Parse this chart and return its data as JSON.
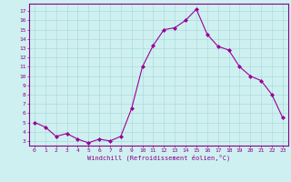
{
  "x": [
    0,
    1,
    2,
    3,
    4,
    5,
    6,
    7,
    8,
    9,
    10,
    11,
    12,
    13,
    14,
    15,
    16,
    17,
    18,
    19,
    20,
    21,
    22,
    23
  ],
  "y": [
    5.0,
    4.5,
    3.5,
    3.8,
    3.2,
    2.8,
    3.2,
    3.0,
    3.5,
    6.5,
    11.0,
    13.3,
    15.0,
    15.2,
    16.0,
    17.2,
    14.5,
    13.2,
    12.8,
    11.0,
    10.0,
    9.5,
    8.0,
    5.5
  ],
  "line_color": "#990099",
  "marker": "D",
  "marker_size": 2.0,
  "bg_color": "#cff0f0",
  "grid_color": "#aadddd",
  "xlabel": "Windchill (Refroidissement éolien,°C)",
  "xlabel_color": "#880088",
  "tick_color": "#880088",
  "ylim": [
    2.5,
    17.8
  ],
  "xlim": [
    -0.5,
    23.5
  ],
  "yticks": [
    3,
    4,
    5,
    6,
    7,
    8,
    9,
    10,
    11,
    12,
    13,
    14,
    15,
    16,
    17
  ],
  "xticks": [
    0,
    1,
    2,
    3,
    4,
    5,
    6,
    7,
    8,
    9,
    10,
    11,
    12,
    13,
    14,
    15,
    16,
    17,
    18,
    19,
    20,
    21,
    22,
    23
  ]
}
